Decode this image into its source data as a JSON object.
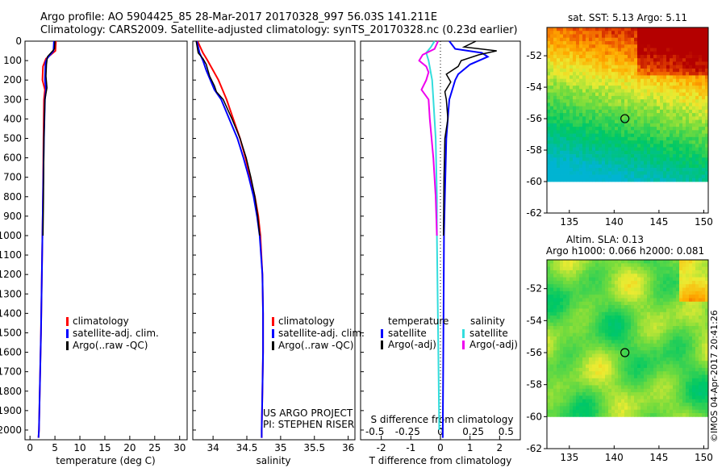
{
  "titles": {
    "line1": "Argo profile: AO 5904425_85 28-Mar-2017 20170328_997 56.03S 141.211E",
    "line2": "Climatology: CARS2009. Satellite-adjusted climatology: synTS_20170328.nc (0.23d earlier)"
  },
  "colors": {
    "climatology": "#ff0000",
    "satellite": "#0000ff",
    "argo": "#000000",
    "sat_salinity": "#33dddd",
    "argo_salinity": "#ee00ee"
  },
  "chart_data": [
    {
      "type": "line",
      "id": "temperature",
      "xlabel": "temperature (deg C)",
      "ylabel": "",
      "xlim": [
        -1,
        31.5
      ],
      "ylim": [
        2050,
        0
      ],
      "xticks": [
        0,
        5,
        10,
        15,
        20,
        25,
        30
      ],
      "yticks": [
        0,
        100,
        200,
        300,
        400,
        500,
        600,
        700,
        800,
        900,
        1000,
        1100,
        1200,
        1300,
        1400,
        1500,
        1600,
        1700,
        1800,
        1900,
        2000
      ],
      "legend": [
        "climatology",
        "satellite-adj. clim.",
        "Argo(..raw -QC)"
      ],
      "series": [
        {
          "name": "climatology",
          "depth": [
            0,
            50,
            90,
            130,
            200,
            250,
            300,
            500,
            800,
            1000,
            1500,
            2000,
            2040
          ],
          "values": [
            5.2,
            5.1,
            3.2,
            2.6,
            2.5,
            3.0,
            2.8,
            2.7,
            2.6,
            2.5,
            2.2,
            1.8,
            1.7
          ]
        },
        {
          "name": "satellite-adj. clim.",
          "depth": [
            0,
            50,
            90,
            110,
            200,
            250,
            300,
            500,
            800,
            1000,
            1500,
            2000,
            2040
          ],
          "values": [
            4.8,
            4.7,
            3.4,
            3.1,
            3.0,
            3.2,
            3.0,
            2.8,
            2.6,
            2.5,
            2.2,
            1.8,
            1.7
          ]
        },
        {
          "name": "Argo(..raw -QC)",
          "depth": [
            0,
            40,
            80,
            120,
            180,
            240,
            300,
            500,
            800,
            1000
          ],
          "values": [
            5.0,
            4.9,
            3.5,
            3.3,
            3.2,
            3.4,
            3.0,
            2.8,
            2.7,
            2.6
          ]
        }
      ]
    },
    {
      "type": "line",
      "id": "salinity",
      "xlabel": "salinity",
      "ylabel": "",
      "xlim": [
        33.7,
        36.1
      ],
      "ylim": [
        2050,
        0
      ],
      "xticks": [
        34,
        34.5,
        35,
        35.5,
        36
      ],
      "xticklabels": [
        "34",
        "34.5",
        "35",
        "35.5",
        "36"
      ],
      "legend": [
        "climatology",
        "satellite-adj. clim.",
        "Argo(..raw -QC)"
      ],
      "annotations": [
        "US ARGO PROJECT",
        "PI: STEPHEN RISER"
      ],
      "series": [
        {
          "name": "climatology",
          "depth": [
            0,
            60,
            100,
            150,
            200,
            300,
            400,
            500,
            600,
            700,
            800,
            900,
            1000,
            1200,
            1400,
            1600,
            1800,
            2000,
            2040
          ],
          "values": [
            33.77,
            33.85,
            33.92,
            34.0,
            34.08,
            34.2,
            34.3,
            34.4,
            34.48,
            34.55,
            34.62,
            34.67,
            34.7,
            34.73,
            34.74,
            34.74,
            34.73,
            34.72,
            34.72
          ]
        },
        {
          "name": "satellite-adj. clim.",
          "depth": [
            0,
            60,
            100,
            150,
            200,
            250,
            300,
            400,
            500,
            600,
            700,
            800,
            900,
            1000,
            1200,
            1400,
            1600,
            1800,
            2000,
            2040
          ],
          "values": [
            33.76,
            33.8,
            33.85,
            33.9,
            33.96,
            34.02,
            34.12,
            34.24,
            34.36,
            34.45,
            34.53,
            34.6,
            34.65,
            34.69,
            34.73,
            34.74,
            34.74,
            34.73,
            34.72,
            34.72
          ]
        },
        {
          "name": "Argo(..raw -QC)",
          "depth": [
            0,
            60,
            90,
            120,
            180,
            230,
            260,
            300,
            400,
            500,
            600,
            700,
            800,
            900,
            1000
          ],
          "values": [
            33.75,
            33.78,
            33.85,
            33.9,
            33.95,
            34.02,
            34.05,
            34.15,
            34.28,
            34.4,
            34.49,
            34.56,
            34.62,
            34.66,
            34.69
          ]
        }
      ]
    },
    {
      "type": "line",
      "id": "difference",
      "xlabel": "T difference from climatology",
      "xlabel_top": "S difference from climatology",
      "xlim": [
        -2.7,
        2.7
      ],
      "ylim": [
        2050,
        0
      ],
      "xticks": [
        -2,
        -1,
        0,
        1,
        2
      ],
      "xticklabels": [
        "-2",
        "-1",
        "0",
        "1",
        "2"
      ],
      "s_ticklabels": [
        "-0.5",
        "-0.25",
        "0",
        "0.25",
        "0.5"
      ],
      "legend": [
        "temperature",
        "satellite",
        "Argo(-adj)",
        "salinity",
        "satellite",
        "Argo(-adj)"
      ],
      "series": [
        {
          "name": "temperature satellite",
          "depth": [
            0,
            40,
            60,
            80,
            120,
            170,
            200,
            300,
            500,
            800,
            1000,
            1500,
            2000,
            2040
          ],
          "values": [
            0.3,
            0.5,
            1.4,
            1.6,
            1.0,
            0.6,
            0.5,
            0.3,
            0.2,
            0.15,
            0.12,
            0.1,
            0.08,
            0.08
          ]
        },
        {
          "name": "temperature Argo(-adj)",
          "depth": [
            0,
            30,
            50,
            70,
            100,
            130,
            170,
            210,
            260,
            300,
            400,
            500,
            700,
            1000
          ],
          "values": [
            1.2,
            0.8,
            1.9,
            1.3,
            0.7,
            0.6,
            0.2,
            0.35,
            0.15,
            0.2,
            0.25,
            0.15,
            0.12,
            0.1
          ]
        },
        {
          "name": "salinity satellite",
          "depth": [
            0,
            30,
            60,
            100,
            200,
            300,
            500,
            800,
            1000,
            1500,
            2000
          ],
          "values": [
            -0.05,
            -0.08,
            -0.12,
            -0.1,
            -0.07,
            -0.06,
            -0.04,
            -0.03,
            -0.03,
            -0.02,
            -0.01
          ]
        },
        {
          "name": "salinity Argo(-adj)",
          "depth": [
            0,
            40,
            70,
            100,
            130,
            160,
            200,
            250,
            300,
            400,
            600,
            800,
            1000
          ],
          "values": [
            -0.02,
            -0.05,
            -0.15,
            -0.18,
            -0.12,
            -0.1,
            -0.12,
            -0.16,
            -0.1,
            -0.09,
            -0.06,
            -0.04,
            -0.03
          ]
        }
      ]
    },
    {
      "type": "heatmap",
      "id": "sst_map",
      "title": "sat. SST: 5.13  Argo: 5.11",
      "xlim": [
        132.5,
        150.5
      ],
      "ylim": [
        -62,
        -50.2
      ],
      "xticks": [
        135,
        140,
        145,
        150
      ],
      "yticks": [
        -52,
        -54,
        -56,
        -58,
        -60,
        -62
      ],
      "marker": {
        "lon": 141.2,
        "lat": -56.0
      }
    },
    {
      "type": "heatmap",
      "id": "sla_map",
      "title_line1": "Altim. SLA: 0.13",
      "title_line2": "Argo h1000: 0.066 h2000: 0.081",
      "xlim": [
        132.5,
        150.5
      ],
      "ylim": [
        -62,
        -50.2
      ],
      "xticks": [
        135,
        140,
        145,
        150
      ],
      "yticks": [
        -52,
        -54,
        -56,
        -58,
        -60,
        -62
      ],
      "marker": {
        "lon": 141.2,
        "lat": -56.0
      }
    }
  ],
  "credit": "©IMOS 04-Apr-2017 20:41:26"
}
